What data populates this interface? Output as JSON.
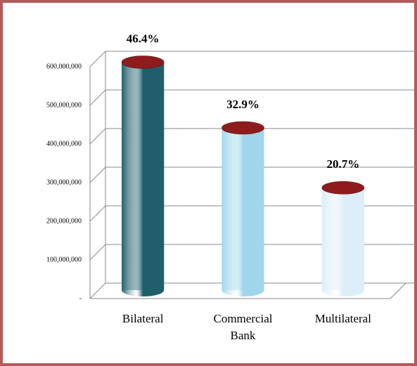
{
  "chart_data": {
    "type": "cylinder",
    "categories": [
      "Bilateral",
      "Commercial Bank",
      "Multilateral"
    ],
    "values": [
      590000000,
      420000000,
      265000000
    ],
    "share_labels": [
      "46.4%",
      "32.9%",
      "20.7%"
    ],
    "colors": [
      "#1f5f6c",
      "#9fd6ec",
      "#dceef7"
    ],
    "cap_color": "#8e1c1c",
    "ylim": [
      0,
      600000000
    ],
    "yticks": [
      {
        "value": 0,
        "label": "-"
      },
      {
        "value": 100000000,
        "label": "100,000,000"
      },
      {
        "value": 200000000,
        "label": "200,000,000"
      },
      {
        "value": 300000000,
        "label": "300,000,000"
      },
      {
        "value": 400000000,
        "label": "400,000,000"
      },
      {
        "value": 500000000,
        "label": "500,000,000"
      },
      {
        "value": 600000000,
        "label": "600,000,000"
      }
    ],
    "grid": true
  }
}
